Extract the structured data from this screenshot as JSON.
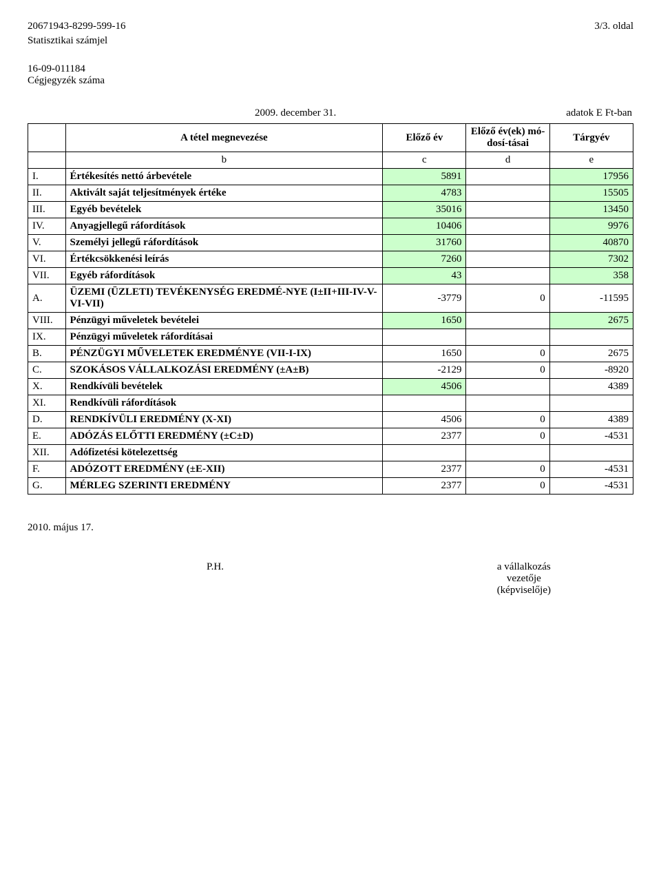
{
  "header": {
    "stat_id": "20671943-8299-599-16",
    "page_label": "3/3. oldal",
    "stat_label": "Statisztikai számjel",
    "reg_id": "16-09-011184",
    "reg_label": "Cégjegyzék száma",
    "date": "2009. december 31.",
    "units": "adatok E Ft-ban"
  },
  "table": {
    "header": {
      "name": "A tétel megnevezése",
      "col_c": "Előző év",
      "col_d": "Előző év(ek) mó-dosí-tásai",
      "col_e": "Tárgyév",
      "sub_b": "b",
      "sub_c": "c",
      "sub_d": "d",
      "sub_e": "e"
    },
    "rows": [
      {
        "a": "I.",
        "b": "Értékesítés nettó árbevétele",
        "c": "5891",
        "d": "",
        "e": "17956",
        "hc": true,
        "he": true
      },
      {
        "a": "II.",
        "b": "Aktivált saját teljesítmények értéke",
        "c": "4783",
        "d": "",
        "e": "15505",
        "hc": true,
        "he": true
      },
      {
        "a": "III.",
        "b": "Egyéb bevételek",
        "c": "35016",
        "d": "",
        "e": "13450",
        "hc": true,
        "he": true
      },
      {
        "a": "IV.",
        "b": "Anyagjellegű ráfordítások",
        "c": "10406",
        "d": "",
        "e": "9976",
        "hc": true,
        "he": true
      },
      {
        "a": "V.",
        "b": "Személyi jellegű ráfordítások",
        "c": "31760",
        "d": "",
        "e": "40870",
        "hc": true,
        "he": true
      },
      {
        "a": "VI.",
        "b": "Értékcsökkenési leírás",
        "c": "7260",
        "d": "",
        "e": "7302",
        "hc": true,
        "he": true
      },
      {
        "a": "VII.",
        "b": "Egyéb ráfordítások",
        "c": "43",
        "d": "",
        "e": "358",
        "hc": true,
        "he": true
      },
      {
        "a": "A.",
        "b": "ÜZEMI (ÜZLETI) TEVÉKENYSÉG EREDMÉ-NYE  (I±II+III-IV-V-VI-VII)",
        "c": "-3779",
        "d": "0",
        "e": "-11595"
      },
      {
        "a": "VIII.",
        "b": "Pénzügyi műveletek bevételei",
        "c": "1650",
        "d": "",
        "e": "2675",
        "hc": true,
        "he": true
      },
      {
        "a": "IX.",
        "b": "Pénzügyi műveletek ráfordításai",
        "c": "",
        "d": "",
        "e": ""
      },
      {
        "a": "B.",
        "b": "PÉNZÜGYI MŰVELETEK EREDMÉNYE (VII-I-IX)",
        "c": "1650",
        "d": "0",
        "e": "2675"
      },
      {
        "a": "C.",
        "b": "SZOKÁSOS VÁLLALKOZÁSI EREDMÉNY (±A±B)",
        "c": "-2129",
        "d": "0",
        "e": "-8920"
      },
      {
        "a": "X.",
        "b": "Rendkívüli bevételek",
        "c": "4506",
        "d": "",
        "e": "4389",
        "hc": true
      },
      {
        "a": "XI.",
        "b": "Rendkívüli ráfordítások",
        "c": "",
        "d": "",
        "e": ""
      },
      {
        "a": "D.",
        "b": "RENDKÍVÜLI EREDMÉNY (X-XI)",
        "c": "4506",
        "d": "0",
        "e": "4389"
      },
      {
        "a": "E.",
        "b": "ADÓZÁS ELŐTTI EREDMÉNY (±C±D)",
        "c": "2377",
        "d": "0",
        "e": "-4531"
      },
      {
        "a": "XII.",
        "b": "Adófizetési kötelezettség",
        "c": "",
        "d": "",
        "e": ""
      },
      {
        "a": "F.",
        "b": "ADÓZOTT EREDMÉNY (±E-XII)",
        "c": "2377",
        "d": "0",
        "e": "-4531"
      },
      {
        "a": "G.",
        "b": "MÉRLEG SZERINTI EREDMÉNY",
        "c": "2377",
        "d": "0",
        "e": "-4531"
      }
    ]
  },
  "footer": {
    "date": "2010. május 17.",
    "ph": "P.H.",
    "sig1": "a vállalkozás",
    "sig2": "vezetője",
    "sig3": "(képviselője)"
  },
  "colors": {
    "highlight": "#ccffcc",
    "background": "#ffffff",
    "text": "#000000",
    "border": "#000000"
  }
}
